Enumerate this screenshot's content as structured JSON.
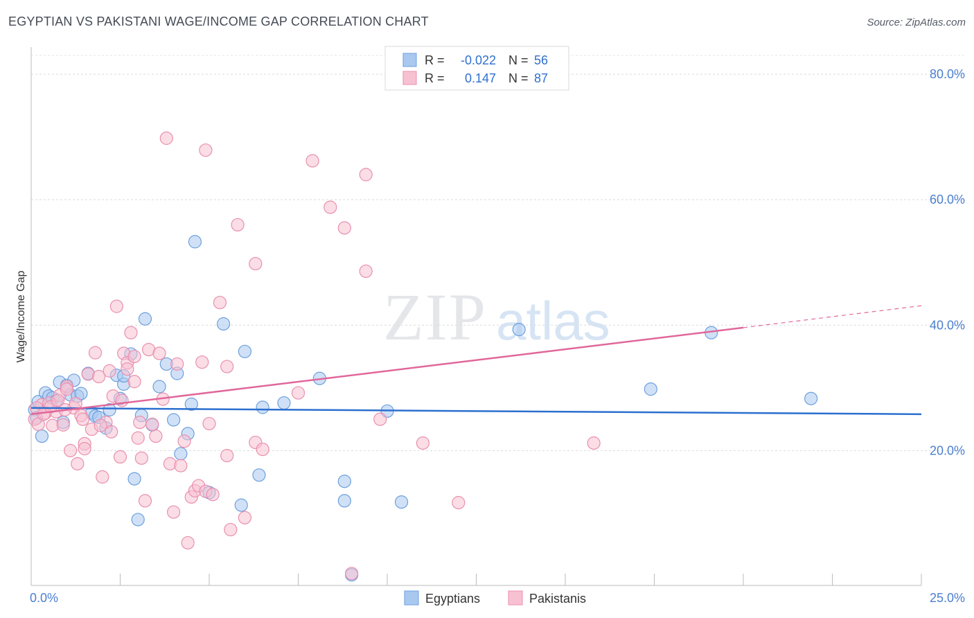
{
  "header": {
    "title": "EGYPTIAN VS PAKISTANI WAGE/INCOME GAP CORRELATION CHART",
    "source": "Source: ZipAtlas.com"
  },
  "watermark": {
    "part1": "ZIP",
    "part2": "atlas"
  },
  "legend_top": {
    "rows": [
      {
        "r_label": "R =",
        "r_value": "-0.022",
        "n_label": "N =",
        "n_value": "56",
        "color": "#a9c8f0",
        "stroke": "#6c9fdc"
      },
      {
        "r_label": "R =",
        "r_value": "0.147",
        "n_label": "N =",
        "n_value": "87",
        "color": "#f7c1d2",
        "stroke": "#e98fae"
      }
    ]
  },
  "legend_bottom": {
    "items": [
      "Egyptians",
      "Pakistanis"
    ]
  },
  "chart_data": {
    "type": "scatter",
    "xlabel": "",
    "ylabel": "Wage/Income Gap",
    "xlim": [
      0,
      25
    ],
    "ylim": [
      -1.5,
      83
    ],
    "x_tick_labels": [
      "0.0%",
      "25.0%"
    ],
    "y_ticks": [
      20,
      40,
      60,
      80
    ],
    "y_tick_labels": [
      "20.0%",
      "40.0%",
      "60.0%",
      "80.0%"
    ],
    "grid": true,
    "colors": {
      "egyptians": "#6c9fdc",
      "egyptians_fill": "#a9c8f0",
      "egyptians_line": "#2b6fcf",
      "pakistanis": "#e98fae",
      "pakistanis_fill": "#f7c1d2",
      "pakistanis_line": "#e0679a",
      "axis_text": "#4a7fd0"
    },
    "series": [
      {
        "name": "Egyptians",
        "trend": {
          "x": [
            0,
            25
          ],
          "y": [
            26.8,
            25.8
          ]
        },
        "points": [
          [
            0.1,
            26.5
          ],
          [
            0.15,
            25.2
          ],
          [
            0.2,
            27.8
          ],
          [
            0.3,
            22.3
          ],
          [
            0.4,
            29.2
          ],
          [
            0.5,
            28.7
          ],
          [
            0.6,
            28.4
          ],
          [
            0.7,
            27.9
          ],
          [
            0.8,
            30.9
          ],
          [
            0.9,
            24.5
          ],
          [
            1.0,
            30.4
          ],
          [
            1.1,
            28.9
          ],
          [
            1.2,
            31.2
          ],
          [
            1.3,
            28.7
          ],
          [
            1.4,
            29.1
          ],
          [
            1.6,
            32.3
          ],
          [
            1.7,
            26.0
          ],
          [
            1.8,
            25.5
          ],
          [
            1.9,
            25.3
          ],
          [
            2.1,
            23.6
          ],
          [
            2.2,
            26.5
          ],
          [
            2.4,
            32.0
          ],
          [
            2.5,
            28.3
          ],
          [
            2.6,
            30.6
          ],
          [
            2.6,
            31.9
          ],
          [
            2.8,
            35.4
          ],
          [
            2.9,
            15.5
          ],
          [
            3.0,
            9.0
          ],
          [
            3.1,
            25.6
          ],
          [
            3.2,
            41.0
          ],
          [
            3.4,
            24.1
          ],
          [
            3.6,
            30.2
          ],
          [
            3.8,
            33.8
          ],
          [
            4.0,
            24.9
          ],
          [
            4.1,
            32.3
          ],
          [
            4.2,
            19.5
          ],
          [
            4.4,
            22.7
          ],
          [
            4.5,
            27.4
          ],
          [
            4.6,
            53.3
          ],
          [
            5.0,
            13.3
          ],
          [
            5.4,
            40.2
          ],
          [
            5.9,
            11.3
          ],
          [
            6.0,
            35.8
          ],
          [
            6.4,
            16.1
          ],
          [
            6.5,
            26.9
          ],
          [
            7.1,
            27.6
          ],
          [
            8.1,
            31.5
          ],
          [
            8.8,
            15.1
          ],
          [
            8.8,
            12.0
          ],
          [
            9.0,
            0.2
          ],
          [
            10.0,
            26.3
          ],
          [
            10.4,
            11.8
          ],
          [
            13.7,
            39.3
          ],
          [
            17.4,
            29.8
          ],
          [
            19.1,
            38.8
          ],
          [
            21.9,
            28.3
          ]
        ]
      },
      {
        "name": "Pakistanis",
        "trend": {
          "x": [
            0,
            20
          ],
          "y": [
            25.8,
            39.6
          ]
        },
        "trend_dashed": {
          "x": [
            20,
            25
          ],
          "y": [
            39.6,
            43.1
          ]
        },
        "points": [
          [
            0.1,
            25.0
          ],
          [
            0.2,
            24.2
          ],
          [
            0.3,
            27.3
          ],
          [
            0.4,
            26.0
          ],
          [
            0.5,
            27.6
          ],
          [
            0.6,
            24.0
          ],
          [
            0.7,
            26.2
          ],
          [
            0.8,
            28.8
          ],
          [
            0.9,
            24.1
          ],
          [
            1.0,
            30.2
          ],
          [
            1.0,
            29.8
          ],
          [
            1.1,
            20.0
          ],
          [
            1.2,
            26.8
          ],
          [
            1.3,
            17.9
          ],
          [
            1.4,
            25.6
          ],
          [
            1.5,
            21.1
          ],
          [
            1.5,
            20.3
          ],
          [
            1.6,
            32.2
          ],
          [
            1.7,
            23.4
          ],
          [
            1.8,
            35.6
          ],
          [
            1.9,
            31.8
          ],
          [
            2.0,
            15.8
          ],
          [
            2.1,
            24.5
          ],
          [
            2.2,
            32.7
          ],
          [
            2.3,
            28.7
          ],
          [
            2.4,
            43.0
          ],
          [
            2.5,
            19.0
          ],
          [
            2.6,
            35.5
          ],
          [
            2.7,
            34.0
          ],
          [
            2.7,
            33.0
          ],
          [
            2.8,
            38.8
          ],
          [
            2.9,
            35.0
          ],
          [
            2.9,
            31.0
          ],
          [
            3.0,
            22.0
          ],
          [
            3.1,
            18.8
          ],
          [
            3.2,
            12.0
          ],
          [
            3.3,
            36.1
          ],
          [
            3.4,
            24.2
          ],
          [
            3.5,
            22.3
          ],
          [
            3.6,
            35.5
          ],
          [
            3.7,
            28.2
          ],
          [
            3.8,
            69.8
          ],
          [
            3.9,
            17.9
          ],
          [
            4.0,
            10.2
          ],
          [
            4.1,
            33.8
          ],
          [
            4.2,
            17.6
          ],
          [
            4.3,
            21.5
          ],
          [
            4.4,
            5.3
          ],
          [
            4.5,
            12.6
          ],
          [
            4.6,
            13.6
          ],
          [
            4.7,
            14.4
          ],
          [
            4.8,
            34.1
          ],
          [
            4.9,
            13.5
          ],
          [
            4.9,
            67.9
          ],
          [
            5.0,
            24.3
          ],
          [
            5.1,
            13.0
          ],
          [
            5.3,
            43.6
          ],
          [
            5.5,
            19.2
          ],
          [
            5.5,
            33.4
          ],
          [
            5.6,
            7.4
          ],
          [
            5.8,
            56.0
          ],
          [
            6.0,
            9.3
          ],
          [
            6.3,
            49.8
          ],
          [
            6.3,
            21.3
          ],
          [
            6.5,
            20.2
          ],
          [
            7.5,
            29.2
          ],
          [
            7.9,
            66.2
          ],
          [
            8.4,
            58.8
          ],
          [
            8.8,
            55.5
          ],
          [
            9.0,
            0.4
          ],
          [
            9.4,
            48.6
          ],
          [
            9.4,
            64.0
          ],
          [
            9.8,
            25.0
          ],
          [
            11.0,
            21.2
          ],
          [
            12.0,
            11.7
          ],
          [
            15.8,
            21.2
          ],
          [
            0.15,
            26.8
          ],
          [
            0.35,
            25.8
          ],
          [
            0.55,
            27.0
          ],
          [
            0.75,
            28.0
          ],
          [
            0.95,
            26.5
          ],
          [
            1.25,
            27.5
          ],
          [
            1.45,
            25.0
          ],
          [
            1.95,
            24.0
          ],
          [
            2.25,
            23.0
          ],
          [
            2.55,
            28.0
          ],
          [
            3.05,
            24.5
          ]
        ]
      }
    ]
  }
}
